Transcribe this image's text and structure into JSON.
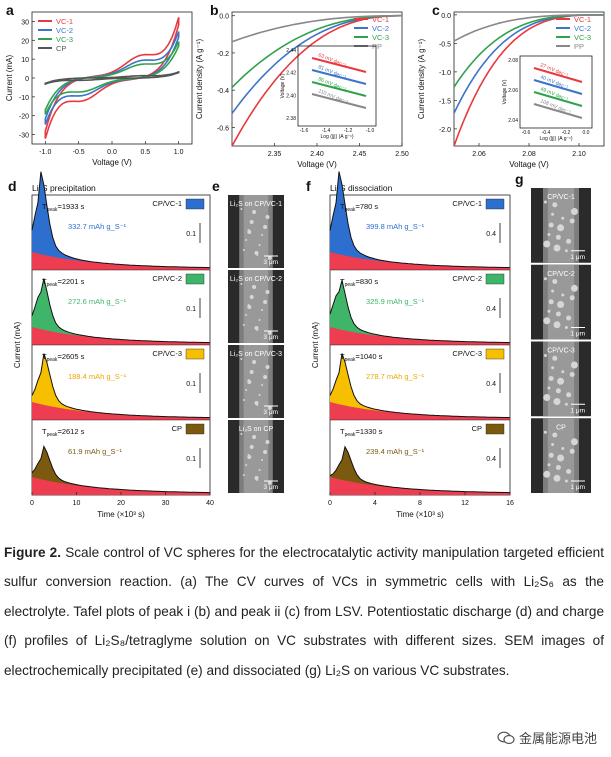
{
  "figure": {
    "panel_letters": {
      "a": "a",
      "b": "b",
      "c": "c",
      "d": "d",
      "e": "e",
      "f": "f",
      "g": "g"
    },
    "colors": {
      "vc1": "#e8393f",
      "vc2": "#3b74c9",
      "vc3": "#31a24c",
      "cp": "#555555",
      "fill_red": "#ee3d50",
      "fill_blue": "#2d6fcf",
      "fill_green": "#3fb56a",
      "fill_yellow": "#f6c000",
      "fill_brown": "#7b5a10"
    },
    "legend_abc": [
      "VC-1",
      "VC-2",
      "VC-3",
      "CP"
    ],
    "legend_bc_last": "PP",
    "panel_d": {
      "title": "Li₂S precipitation",
      "xlabel": "Time (×10³ s)",
      "ylabel": "Current (mA)",
      "xticks": [
        "0",
        "10",
        "20",
        "30",
        "40"
      ],
      "scale": "0.1"
    },
    "panel_f": {
      "title": "Li₂S dissociation",
      "xlabel": "Time (×10³ s)",
      "ylabel": "Current (mA)",
      "xticks": [
        "0",
        "4",
        "8",
        "12",
        "16"
      ],
      "scale": "0.4"
    },
    "panel_e_labels": [
      "Li₂S on CP/VC-1",
      "Li₂S on CP/VC-2",
      "Li₂S on CP/VC-3",
      "Li₂S on CP"
    ],
    "panel_g_labels": [
      "CP/VC-1",
      "CP/VC-2",
      "CP/VC-3",
      "CP"
    ],
    "scalebar": "3 μm",
    "scalebar_g": "1 μm"
  },
  "chart_data": [
    {
      "type": "line",
      "panel": "a",
      "xlabel": "Voltage (V)",
      "ylabel": "Current (mA)",
      "xlim": [
        -1.2,
        1.2
      ],
      "ylim": [
        -35,
        35
      ],
      "xticks": [
        -1.0,
        -0.5,
        0.0,
        0.5,
        1.0
      ],
      "yticks": [
        -30,
        -20,
        -10,
        0,
        10,
        20,
        30
      ],
      "series": [
        {
          "name": "VC-1",
          "amplitude": 30
        },
        {
          "name": "VC-2",
          "amplitude": 23
        },
        {
          "name": "VC-3",
          "amplitude": 18
        },
        {
          "name": "CP",
          "amplitude": 3
        }
      ]
    },
    {
      "type": "line",
      "panel": "b",
      "xlabel": "Voltage (V)",
      "ylabel": "Current density (A g⁻¹)",
      "xlim": [
        2.3,
        2.5
      ],
      "ylim": [
        -0.7,
        0.02
      ],
      "xticks": [
        2.35,
        2.4,
        2.45,
        2.5
      ],
      "yticks": [
        0.0,
        -0.2,
        -0.4,
        -0.6
      ],
      "inset": {
        "xlabel": "Log (|j|) (A g⁻¹)",
        "ylabel": "Voltage (V)",
        "xticks": [
          -1.6,
          -1.4,
          -1.2,
          -1.0
        ],
        "yticks": [
          2.38,
          2.4,
          2.42,
          2.44
        ],
        "slopes": [
          {
            "name": "VC-1",
            "label": "63 mV dec⁻¹"
          },
          {
            "name": "VC-2",
            "label": "81 mV dec⁻¹"
          },
          {
            "name": "VC-3",
            "label": "86 mV dec⁻¹"
          },
          {
            "name": "PP",
            "label": "110 mV dec⁻¹"
          }
        ]
      }
    },
    {
      "type": "line",
      "panel": "c",
      "xlabel": "Voltage (V)",
      "ylabel": "Current density (A g⁻¹)",
      "xlim": [
        2.05,
        2.11
      ],
      "ylim": [
        -2.3,
        0.05
      ],
      "xticks": [
        2.06,
        2.08,
        2.1
      ],
      "yticks": [
        0.0,
        -0.5,
        -1.0,
        -1.5,
        -2.0
      ],
      "inset": {
        "xlabel": "Log (|j|) (A g⁻¹)",
        "ylabel": "Voltage (V)",
        "xticks": [
          -0.6,
          -0.4,
          -0.2,
          0.0
        ],
        "yticks": [
          2.04,
          2.06,
          2.08
        ],
        "slopes": [
          {
            "name": "VC-1",
            "label": "27 mV dec⁻¹"
          },
          {
            "name": "VC-2",
            "label": "40 mV dec⁻¹"
          },
          {
            "name": "VC-3",
            "label": "49 mV dec⁻¹"
          },
          {
            "name": "PP",
            "label": "108 mV dec⁻¹"
          }
        ]
      }
    },
    {
      "type": "area",
      "panel": "d",
      "title": "Li₂S precipitation",
      "xlabel": "Time (×10³ s)",
      "xlim": [
        0,
        40
      ],
      "series": [
        {
          "name": "CP/VC-1",
          "t_peak": "T_peak=1933 s",
          "capacity": "332.7 mAh g_S⁻¹",
          "peak_x": 1.93
        },
        {
          "name": "CP/VC-2",
          "t_peak": "T_peak=2201 s",
          "capacity": "272.6 mAh g_S⁻¹",
          "peak_x": 2.2
        },
        {
          "name": "CP/VC-3",
          "t_peak": "T_peak=2605 s",
          "capacity": "188.4 mAh g_S⁻¹",
          "peak_x": 2.6
        },
        {
          "name": "CP",
          "t_peak": "T_peak=2612 s",
          "capacity": "61.9 mAh g_S⁻¹",
          "peak_x": 2.61
        }
      ]
    },
    {
      "type": "area",
      "panel": "f",
      "title": "Li₂S dissociation",
      "xlabel": "Time (×10³ s)",
      "xlim": [
        0,
        16
      ],
      "series": [
        {
          "name": "CP/VC-1",
          "t_peak": "T_peak=780 s",
          "capacity": "399.8 mAh g_S⁻¹",
          "peak_x": 0.78
        },
        {
          "name": "CP/VC-2",
          "t_peak": "T_peak=830 s",
          "capacity": "325.9 mAh g_S⁻¹",
          "peak_x": 0.83
        },
        {
          "name": "CP/VC-3",
          "t_peak": "T_peak=1040 s",
          "capacity": "278.7 mAh g_S⁻¹",
          "peak_x": 1.04
        },
        {
          "name": "CP",
          "t_peak": "T_peak=1330 s",
          "capacity": "239.4 mAh g_S⁻¹",
          "peak_x": 1.33
        }
      ]
    }
  ],
  "caption": {
    "label": "Figure 2.",
    "text": "Scale control of VC spheres for the electrocatalytic activity manipulation targeted efficient sulfur conversion reaction. (a) The CV curves of VCs in symmetric cells with Li₂S₆ as the electrolyte. Tafel plots of peak i (b) and peak ii (c) from LSV. Potentiostatic discharge (d) and charge (f) profiles of Li₂S₈/tetraglyme solution on VC substrates with different sizes. SEM images of electrochemically precipitated (e) and dissociated (g) Li₂S on various VC substrates."
  },
  "watermark": "金属能源电池"
}
